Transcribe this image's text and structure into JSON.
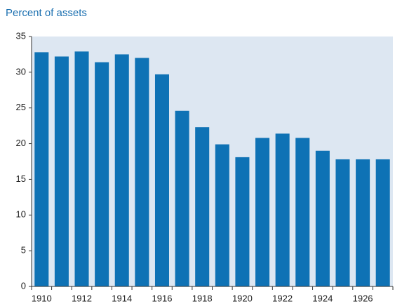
{
  "chart_data": {
    "type": "bar",
    "title": "Percent of assets",
    "categories": [
      "1910",
      null,
      "1912",
      null,
      "1914",
      null,
      "1916",
      null,
      "1918",
      null,
      "1920",
      null,
      "1922",
      null,
      "1924",
      null,
      "1926",
      null
    ],
    "values": [
      32.8,
      32.2,
      32.9,
      31.4,
      32.5,
      32.0,
      29.7,
      24.6,
      22.3,
      19.9,
      18.1,
      20.8,
      21.4,
      20.8,
      19.0,
      17.8,
      17.8,
      17.8
    ],
    "color": "#0e72b5",
    "ylim": [
      0,
      35
    ],
    "yticks": [
      0,
      5,
      10,
      15,
      20,
      25,
      30,
      35
    ]
  }
}
